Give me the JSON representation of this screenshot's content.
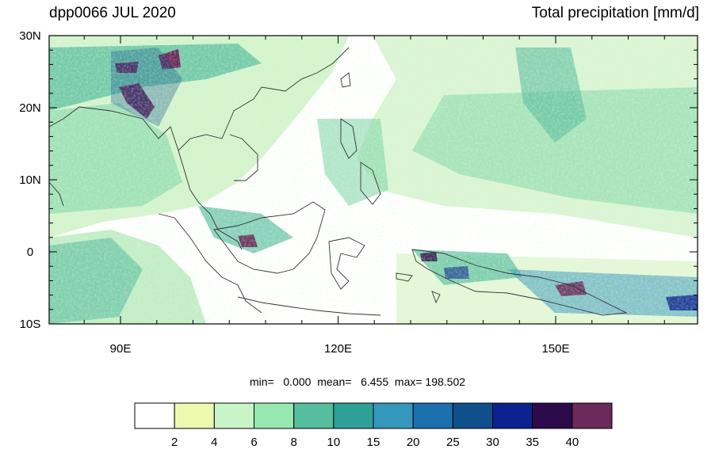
{
  "title": {
    "left": "dpp0066 JUL 2020",
    "right": "Total precipitation [mm/d]"
  },
  "stats": {
    "min_label": "min=",
    "min": "0.000",
    "mean_label": "mean=",
    "mean": "6.455",
    "max_label": "max=",
    "max": "198.502"
  },
  "axes": {
    "lat_labels": [
      "30N",
      "20N",
      "10N",
      "0",
      "10S"
    ],
    "lon_labels": [
      "90E",
      "120E",
      "150E"
    ]
  },
  "colorbar": {
    "colors": [
      "#ffffff",
      "#edf8b1",
      "#c7f5c7",
      "#97e8b0",
      "#56bd9e",
      "#2ea095",
      "#3697bd",
      "#1b6fad",
      "#0e4f8c",
      "#0c2290",
      "#2d0a4a",
      "#6b2a5a"
    ],
    "tick_labels": [
      "2",
      "4",
      "6",
      "8",
      "10",
      "15",
      "20",
      "25",
      "30",
      "35",
      "40"
    ]
  }
}
